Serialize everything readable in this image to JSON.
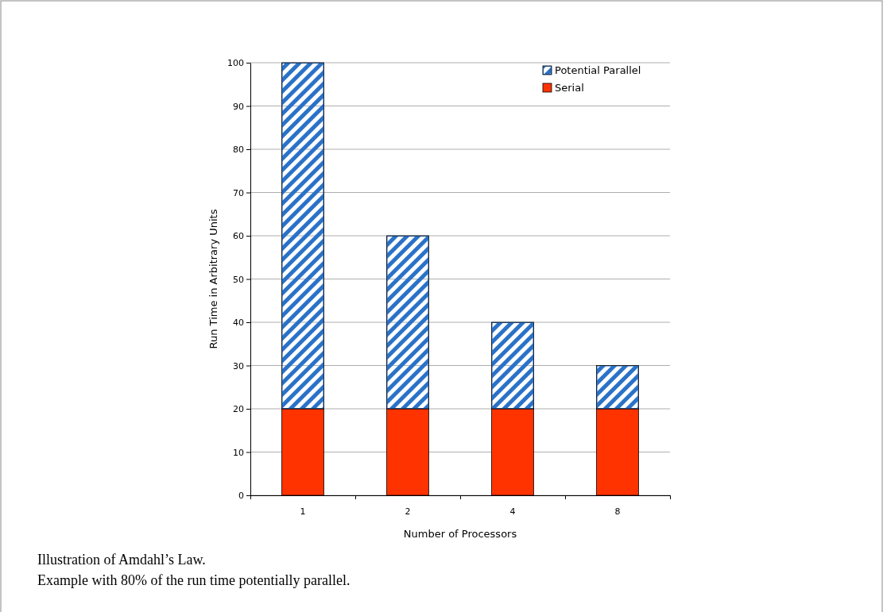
{
  "chart_data": {
    "type": "bar",
    "stacked": true,
    "xlabel": "Number of Processors",
    "ylabel": "Run Time in Arbitrary Units",
    "categories": [
      "1",
      "2",
      "4",
      "8"
    ],
    "series": [
      {
        "name": "Serial",
        "color": "#ff3300",
        "values": [
          20,
          20,
          20,
          20
        ]
      },
      {
        "name": "Potential Parallel",
        "color": "#2a72c8",
        "values": [
          80,
          40,
          20,
          10
        ]
      }
    ],
    "ylim": [
      0,
      100
    ],
    "yticks": [
      0,
      10,
      20,
      30,
      40,
      50,
      60,
      70,
      80,
      90,
      100
    ],
    "grid": "y",
    "legend": "top right",
    "annotations": [
      "Illustration of Amdahl’s Law.",
      "Example with 80% of the run time potentially parallel."
    ]
  }
}
